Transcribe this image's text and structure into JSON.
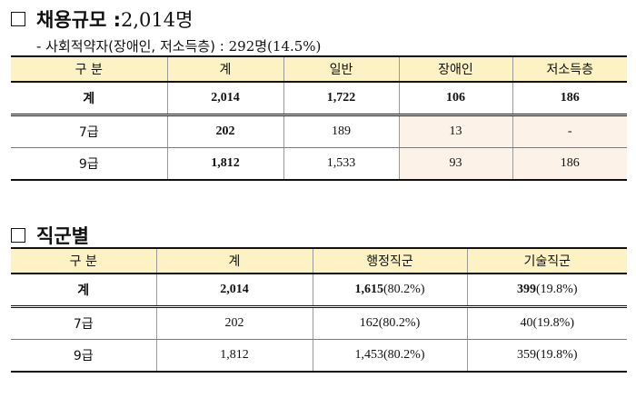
{
  "section1": {
    "title": "채용규모 : ",
    "title_number": "2,014명",
    "note_prefix": "- 사회적약자(장애인, 저소득층) : ",
    "note_value": "292명(14.5%)",
    "headers": [
      "구   분",
      "계",
      "일반",
      "장애인",
      "저소득층"
    ],
    "rows": [
      {
        "label": "계",
        "values": [
          "2,014",
          "1,722",
          "106",
          "186"
        ]
      },
      {
        "label": "7급",
        "values": [
          "202",
          "189",
          "13",
          "-"
        ]
      },
      {
        "label": "9급",
        "values": [
          "1,812",
          "1,533",
          "93",
          "186"
        ]
      }
    ]
  },
  "section2": {
    "title": "직군별",
    "headers": [
      "구   분",
      "계",
      "행정직군",
      "기술직군"
    ],
    "rows": [
      {
        "label": "계",
        "values": [
          {
            "num": "2,014",
            "pct": ""
          },
          {
            "num": "1,615",
            "pct": "(80.2%)"
          },
          {
            "num": "399",
            "pct": "(19.8%)"
          }
        ]
      },
      {
        "label": "7급",
        "values": [
          {
            "num": "202",
            "pct": ""
          },
          {
            "num": "162",
            "pct": "(80.2%)"
          },
          {
            "num": "40",
            "pct": "(19.8%)"
          }
        ]
      },
      {
        "label": "9급",
        "values": [
          {
            "num": "1,812",
            "pct": ""
          },
          {
            "num": "1,453",
            "pct": "(80.2%)"
          },
          {
            "num": "359",
            "pct": "(19.8%)"
          }
        ]
      }
    ]
  }
}
